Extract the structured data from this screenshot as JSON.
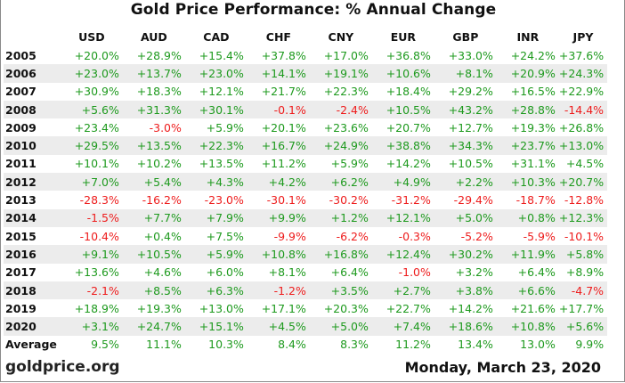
{
  "chart_data": {
    "type": "table",
    "title": "Gold Price Performance: % Annual Change",
    "row_header_label": "",
    "columns": [
      "USD",
      "AUD",
      "CAD",
      "CHF",
      "CNY",
      "EUR",
      "GBP",
      "INR",
      "JPY"
    ],
    "rows": [
      {
        "year": "2005",
        "values": [
          "+20.0%",
          "+28.9%",
          "+15.4%",
          "+37.8%",
          "+17.0%",
          "+36.8%",
          "+33.0%",
          "+24.2%",
          "+37.6%"
        ]
      },
      {
        "year": "2006",
        "values": [
          "+23.0%",
          "+13.7%",
          "+23.0%",
          "+14.1%",
          "+19.1%",
          "+10.6%",
          "+8.1%",
          "+20.9%",
          "+24.3%"
        ]
      },
      {
        "year": "2007",
        "values": [
          "+30.9%",
          "+18.3%",
          "+12.1%",
          "+21.7%",
          "+22.3%",
          "+18.4%",
          "+29.2%",
          "+16.5%",
          "+22.9%"
        ]
      },
      {
        "year": "2008",
        "values": [
          "+5.6%",
          "+31.3%",
          "+30.1%",
          "-0.1%",
          "-2.4%",
          "+10.5%",
          "+43.2%",
          "+28.8%",
          "-14.4%"
        ]
      },
      {
        "year": "2009",
        "values": [
          "+23.4%",
          "-3.0%",
          "+5.9%",
          "+20.1%",
          "+23.6%",
          "+20.7%",
          "+12.7%",
          "+19.3%",
          "+26.8%"
        ]
      },
      {
        "year": "2010",
        "values": [
          "+29.5%",
          "+13.5%",
          "+22.3%",
          "+16.7%",
          "+24.9%",
          "+38.8%",
          "+34.3%",
          "+23.7%",
          "+13.0%"
        ]
      },
      {
        "year": "2011",
        "values": [
          "+10.1%",
          "+10.2%",
          "+13.5%",
          "+11.2%",
          "+5.9%",
          "+14.2%",
          "+10.5%",
          "+31.1%",
          "+4.5%"
        ]
      },
      {
        "year": "2012",
        "values": [
          "+7.0%",
          "+5.4%",
          "+4.3%",
          "+4.2%",
          "+6.2%",
          "+4.9%",
          "+2.2%",
          "+10.3%",
          "+20.7%"
        ]
      },
      {
        "year": "2013",
        "values": [
          "-28.3%",
          "-16.2%",
          "-23.0%",
          "-30.1%",
          "-30.2%",
          "-31.2%",
          "-29.4%",
          "-18.7%",
          "-12.8%"
        ]
      },
      {
        "year": "2014",
        "values": [
          "-1.5%",
          "+7.7%",
          "+7.9%",
          "+9.9%",
          "+1.2%",
          "+12.1%",
          "+5.0%",
          "+0.8%",
          "+12.3%"
        ]
      },
      {
        "year": "2015",
        "values": [
          "-10.4%",
          "+0.4%",
          "+7.5%",
          "-9.9%",
          "-6.2%",
          "-0.3%",
          "-5.2%",
          "-5.9%",
          "-10.1%"
        ]
      },
      {
        "year": "2016",
        "values": [
          "+9.1%",
          "+10.5%",
          "+5.9%",
          "+10.8%",
          "+16.8%",
          "+12.4%",
          "+30.2%",
          "+11.9%",
          "+5.8%"
        ]
      },
      {
        "year": "2017",
        "values": [
          "+13.6%",
          "+4.6%",
          "+6.0%",
          "+8.1%",
          "+6.4%",
          "-1.0%",
          "+3.2%",
          "+6.4%",
          "+8.9%"
        ]
      },
      {
        "year": "2018",
        "values": [
          "-2.1%",
          "+8.5%",
          "+6.3%",
          "-1.2%",
          "+3.5%",
          "+2.7%",
          "+3.8%",
          "+6.6%",
          "-4.7%"
        ]
      },
      {
        "year": "2019",
        "values": [
          "+18.9%",
          "+19.3%",
          "+13.0%",
          "+17.1%",
          "+20.3%",
          "+22.7%",
          "+14.2%",
          "+21.6%",
          "+17.7%"
        ]
      },
      {
        "year": "2020",
        "values": [
          "+3.1%",
          "+24.7%",
          "+15.1%",
          "+4.5%",
          "+5.0%",
          "+7.4%",
          "+18.6%",
          "+10.8%",
          "+5.6%"
        ]
      }
    ],
    "average": {
      "label": "Average",
      "values": [
        "9.5%",
        "11.1%",
        "10.3%",
        "8.4%",
        "8.3%",
        "11.2%",
        "13.4%",
        "13.0%",
        "9.9%"
      ]
    },
    "colors": {
      "positive": "#1e9a1e",
      "negative": "#ee1c1c"
    }
  },
  "footer": {
    "source": "goldprice.org",
    "date": "Monday, March 23, 2020"
  }
}
